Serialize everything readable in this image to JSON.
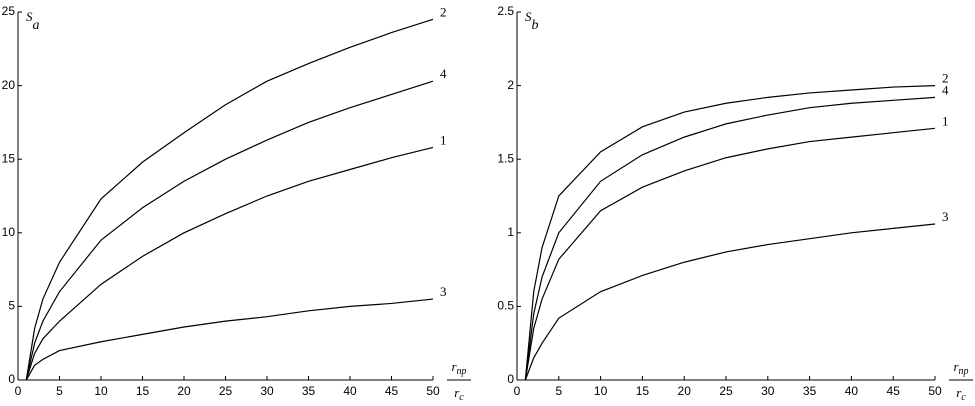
{
  "chart_data": [
    {
      "type": "line",
      "y_label": {
        "symbol": "S",
        "subscript": "a"
      },
      "x_label": {
        "numerator": "r",
        "numerator_subscript": "пр",
        "denominator": "r",
        "denominator_subscript": "c"
      },
      "x": [
        1,
        2,
        3,
        5,
        10,
        15,
        20,
        25,
        30,
        35,
        40,
        45,
        50
      ],
      "series": [
        {
          "name": "2",
          "color": "#000000",
          "values": [
            0,
            3.5,
            5.5,
            8,
            12.3,
            14.8,
            16.8,
            18.7,
            20.3,
            21.5,
            22.6,
            23.6,
            24.5
          ]
        },
        {
          "name": "4",
          "color": "#000000",
          "values": [
            0,
            2.5,
            4,
            6,
            9.5,
            11.7,
            13.5,
            15,
            16.3,
            17.5,
            18.5,
            19.4,
            20.3
          ]
        },
        {
          "name": "1",
          "color": "#000000",
          "values": [
            0,
            1.8,
            2.8,
            4,
            6.5,
            8.4,
            10,
            11.3,
            12.5,
            13.5,
            14.3,
            15.1,
            15.8
          ]
        },
        {
          "name": "3",
          "color": "#000000",
          "values": [
            0,
            1,
            1.4,
            2,
            2.6,
            3.1,
            3.6,
            4,
            4.3,
            4.7,
            5,
            5.2,
            5.5
          ]
        }
      ],
      "xlim": [
        0,
        50
      ],
      "xticks": [
        0,
        5,
        10,
        15,
        20,
        25,
        30,
        35,
        40,
        45,
        50
      ],
      "ylim": [
        0,
        25
      ],
      "yticks": [
        0,
        5,
        10,
        15,
        20,
        25
      ],
      "grid": false
    },
    {
      "type": "line",
      "y_label": {
        "symbol": "S",
        "subscript": "b"
      },
      "x_label": {
        "numerator": "r",
        "numerator_subscript": "пр",
        "denominator": "r",
        "denominator_subscript": "c"
      },
      "x": [
        1,
        2,
        3,
        5,
        10,
        15,
        20,
        25,
        30,
        35,
        40,
        45,
        50
      ],
      "series": [
        {
          "name": "2",
          "color": "#000000",
          "values": [
            0,
            0.6,
            0.9,
            1.25,
            1.55,
            1.72,
            1.82,
            1.88,
            1.92,
            1.95,
            1.97,
            1.99,
            2.0
          ]
        },
        {
          "name": "4",
          "color": "#000000",
          "values": [
            0,
            0.45,
            0.7,
            1.0,
            1.35,
            1.53,
            1.65,
            1.74,
            1.8,
            1.85,
            1.88,
            1.9,
            1.92
          ]
        },
        {
          "name": "1",
          "color": "#000000",
          "values": [
            0,
            0.35,
            0.55,
            0.82,
            1.15,
            1.31,
            1.42,
            1.51,
            1.57,
            1.62,
            1.65,
            1.68,
            1.71
          ]
        },
        {
          "name": "3",
          "color": "#000000",
          "values": [
            0,
            0.15,
            0.25,
            0.42,
            0.6,
            0.71,
            0.8,
            0.87,
            0.92,
            0.96,
            1.0,
            1.03,
            1.06
          ]
        }
      ],
      "xlim": [
        0,
        50
      ],
      "xticks": [
        0,
        5,
        10,
        15,
        20,
        25,
        30,
        35,
        40,
        45,
        50
      ],
      "ylim": [
        0,
        2.5
      ],
      "yticks": [
        0,
        0.5,
        1,
        1.5,
        2,
        2.5
      ],
      "grid": false
    }
  ]
}
